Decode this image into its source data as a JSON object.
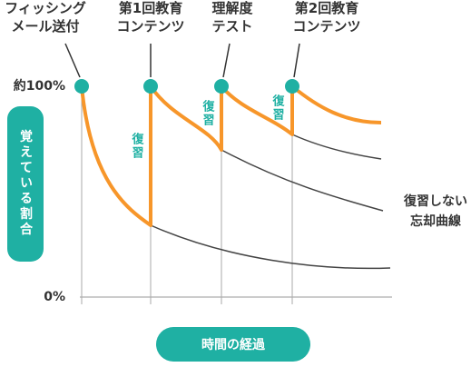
{
  "y_axis": {
    "top": "約100%",
    "bottom": "0%",
    "label": "覚えている割合"
  },
  "x_axis": {
    "label": "時間の経過"
  },
  "events": [
    {
      "lines": [
        "フィッシング",
        "メール送付"
      ]
    },
    {
      "lines": [
        "第1回教育",
        "コンテンツ"
      ]
    },
    {
      "lines": [
        "理解度",
        "テスト"
      ]
    },
    {
      "lines": [
        "第2回教育",
        "コンテンツ"
      ]
    }
  ],
  "review_labels": [
    "復習",
    "復習",
    "復習"
  ],
  "curve_label": [
    "復習しない",
    "忘却曲線"
  ]
}
